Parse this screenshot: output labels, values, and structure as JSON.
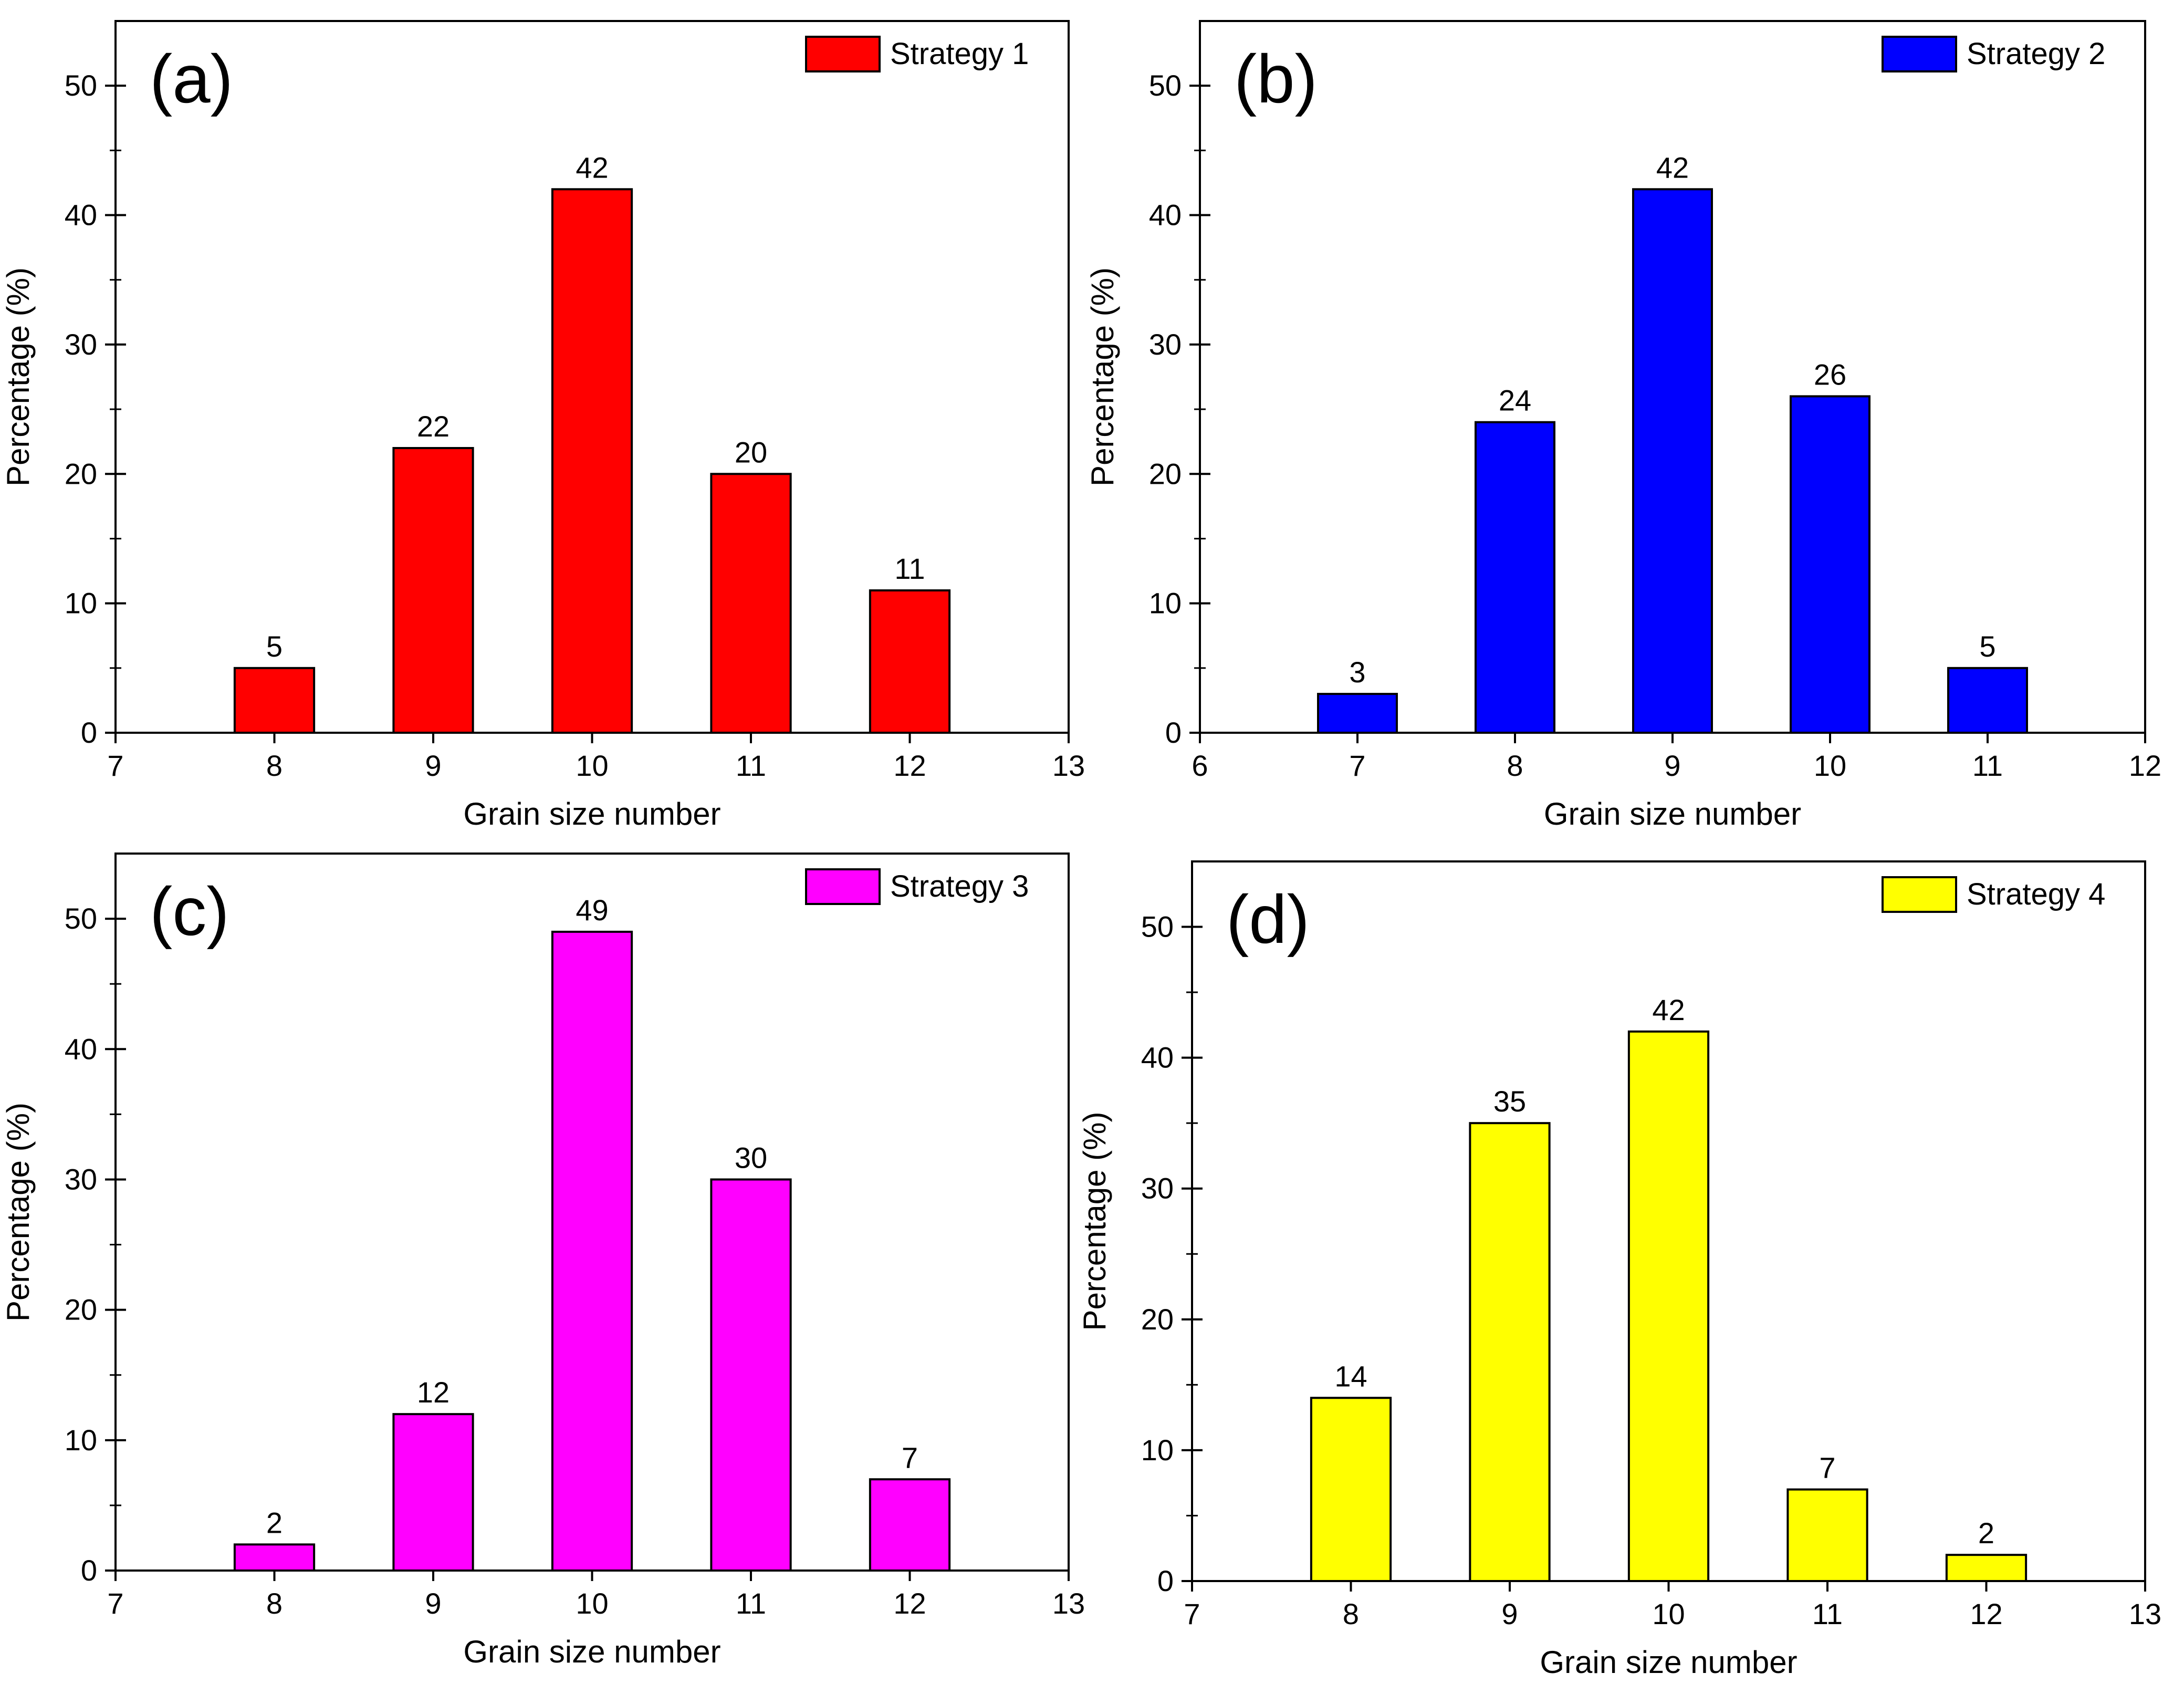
{
  "figure": {
    "x_axis_label": "Grain size number",
    "y_axis_label": "Percentage (%)"
  },
  "chart_data": [
    {
      "type": "bar",
      "panel_label": "(a)",
      "series": [
        {
          "name": "Strategy 1",
          "color": "#ff0000"
        }
      ],
      "x": [
        8,
        9,
        10,
        11,
        12
      ],
      "values": [
        5,
        22,
        42,
        20,
        11
      ],
      "data_labels": [
        "5",
        "22",
        "42",
        "20",
        "11"
      ],
      "xlim": [
        7,
        13
      ],
      "ylim": [
        0,
        55
      ],
      "xticks": [
        7,
        8,
        9,
        10,
        11,
        12,
        13
      ],
      "yticks": [
        0,
        10,
        20,
        30,
        40,
        50
      ],
      "xlabel": "Grain size number",
      "ylabel": "Percentage (%)",
      "legend_position": "top-right"
    },
    {
      "type": "bar",
      "panel_label": "(b)",
      "series": [
        {
          "name": "Strategy 2",
          "color": "#0000ff"
        }
      ],
      "x": [
        7,
        8,
        9,
        10,
        11
      ],
      "values": [
        3,
        24,
        42,
        26,
        5
      ],
      "data_labels": [
        "3",
        "24",
        "42",
        "26",
        "5"
      ],
      "xlim": [
        6,
        12
      ],
      "ylim": [
        0,
        55
      ],
      "xticks": [
        6,
        7,
        8,
        9,
        10,
        11,
        12
      ],
      "yticks": [
        0,
        10,
        20,
        30,
        40,
        50
      ],
      "xlabel": "Grain size number",
      "ylabel": "Percentage (%)",
      "legend_position": "top-right"
    },
    {
      "type": "bar",
      "panel_label": "(c)",
      "series": [
        {
          "name": "Strategy 3",
          "color": "#ff00ff"
        }
      ],
      "x": [
        8,
        9,
        10,
        11,
        12
      ],
      "values": [
        2,
        12,
        49,
        30,
        7
      ],
      "data_labels": [
        "2",
        "12",
        "49",
        "30",
        "7"
      ],
      "xlim": [
        7,
        13
      ],
      "ylim": [
        0,
        55
      ],
      "xticks": [
        7,
        8,
        9,
        10,
        11,
        12,
        13
      ],
      "yticks": [
        0,
        10,
        20,
        30,
        40,
        50
      ],
      "xlabel": "Grain size number",
      "ylabel": "Percentage (%)",
      "legend_position": "top-right"
    },
    {
      "type": "bar",
      "panel_label": "(d)",
      "series": [
        {
          "name": "Strategy 4",
          "color": "#ffff00"
        }
      ],
      "x": [
        8,
        9,
        10,
        11,
        12
      ],
      "values": [
        14,
        35,
        42,
        7,
        2
      ],
      "data_labels": [
        "14",
        "35",
        "42",
        "7",
        "2"
      ],
      "xlim": [
        7,
        13
      ],
      "ylim": [
        0,
        55
      ],
      "xticks": [
        7,
        8,
        9,
        10,
        11,
        12,
        13
      ],
      "yticks": [
        0,
        10,
        20,
        30,
        40,
        50
      ],
      "xlabel": "Grain size number",
      "ylabel": "Percentage (%)",
      "legend_position": "top-right"
    }
  ]
}
